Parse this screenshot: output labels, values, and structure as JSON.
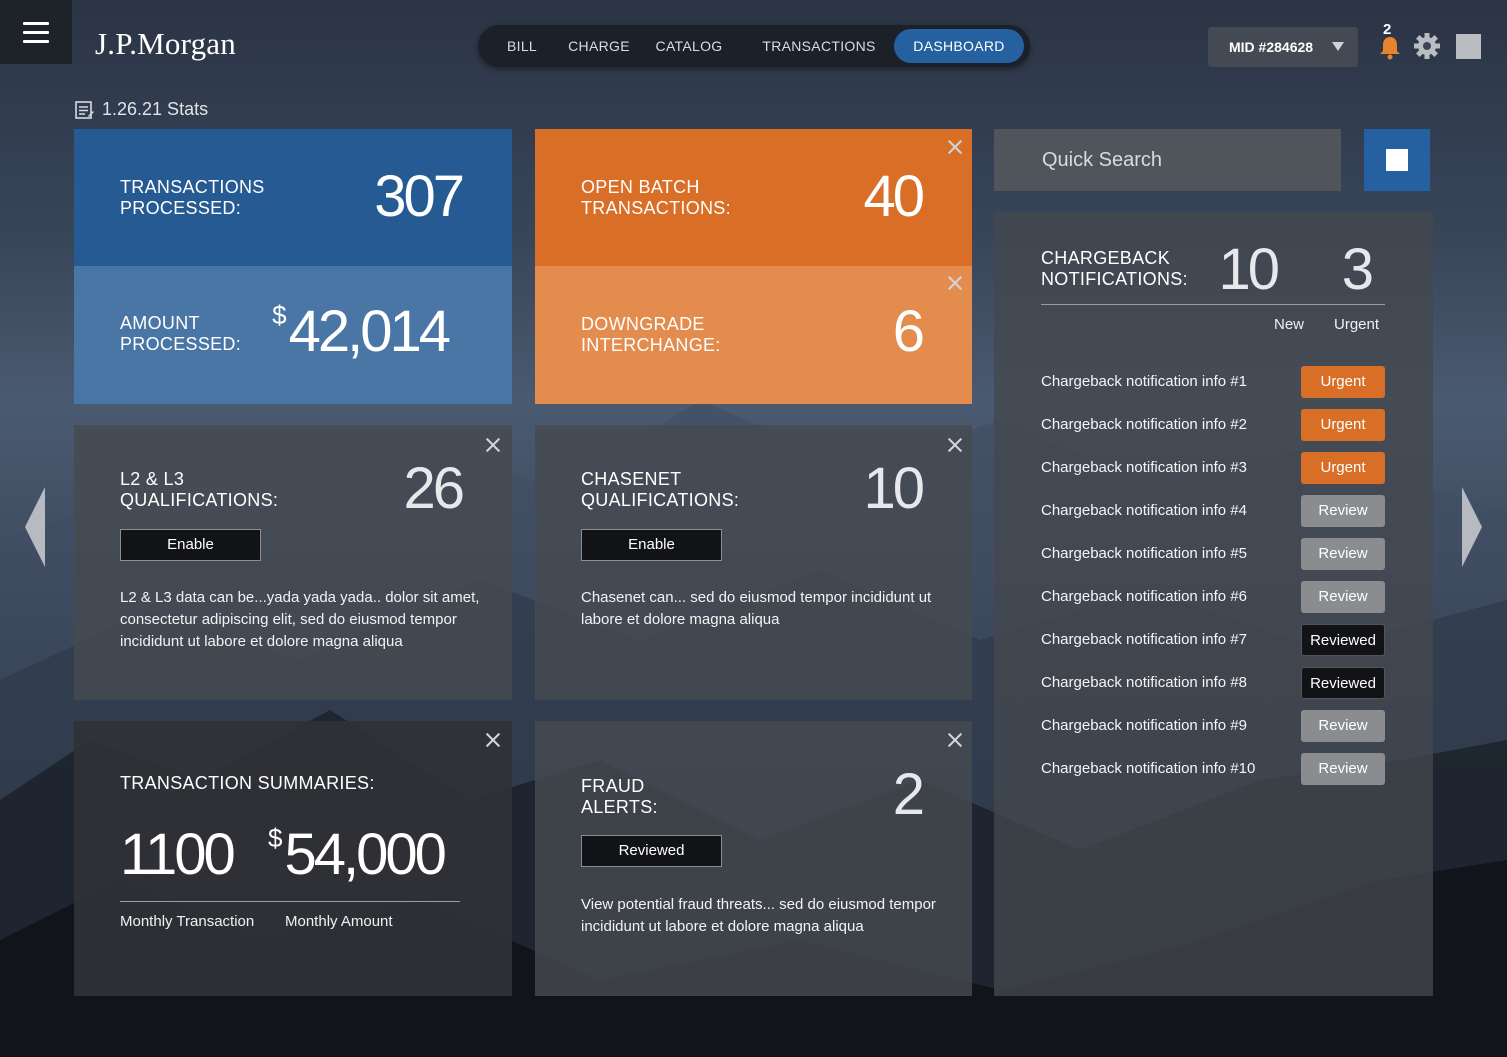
{
  "header": {
    "logo": "J.P.Morgan",
    "nav": [
      {
        "label": "BILL"
      },
      {
        "label": "CHARGE"
      },
      {
        "label": "CATALOG"
      },
      {
        "label": "TRANSACTIONS"
      },
      {
        "label": "DASHBOARD",
        "active": true
      }
    ],
    "merchant": "MID #284628",
    "notification_count": "2"
  },
  "stats_title": "1.26.21 Stats",
  "cards": {
    "transactions_processed": {
      "label_line1": "TRANSACTIONS",
      "label_line2": "PROCESSED:",
      "value": "307"
    },
    "amount_processed": {
      "label_line1": "AMOUNT",
      "label_line2": "PROCESSED:",
      "currency": "$",
      "value": "42,014"
    },
    "open_batch": {
      "label_line1": "OPEN BATCH",
      "label_line2": "TRANSACTIONS:",
      "value": "40"
    },
    "downgrade": {
      "label_line1": "DOWNGRADE",
      "label_line2": "INTERCHANGE:",
      "value": "6"
    },
    "l2l3": {
      "label_line1": "L2 & L3",
      "label_line2": "QUALIFICATIONS:",
      "value": "26",
      "button": "Enable",
      "desc": "L2 & L3 data can be...yada yada yada.. dolor sit amet, consectetur adipiscing elit, sed do eiusmod tempor incididunt ut labore et dolore magna aliqua"
    },
    "chasenet": {
      "label_line1": "CHASENET",
      "label_line2": "QUALIFICATIONS:",
      "value": "10",
      "button": "Enable",
      "desc": "Chasenet can... sed do eiusmod tempor incididunt ut labore et dolore magna aliqua"
    },
    "summaries": {
      "label": "TRANSACTION SUMMARIES:",
      "monthly_transaction": "1100",
      "monthly_transaction_label": "Monthly Transaction",
      "currency": "$",
      "monthly_amount": "54,000",
      "monthly_amount_label": "Monthly Amount"
    },
    "fraud": {
      "label_line1": "FRAUD",
      "label_line2": "ALERTS:",
      "value": "2",
      "button": "Reviewed",
      "desc": "View potential fraud threats... sed do eiusmod tempor incididunt ut labore et dolore magna aliqua"
    }
  },
  "search": {
    "placeholder": "Quick Search"
  },
  "chargeback": {
    "label_line1": "CHARGEBACK",
    "label_line2": "NOTIFICATIONS:",
    "new_count": "10",
    "new_label": "New",
    "urgent_count": "3",
    "urgent_label": "Urgent",
    "items": [
      {
        "text": "Chargeback notification info #1",
        "status": "Urgent",
        "kind": "urgent"
      },
      {
        "text": "Chargeback notification info #2",
        "status": "Urgent",
        "kind": "urgent"
      },
      {
        "text": "Chargeback notification info #3",
        "status": "Urgent",
        "kind": "urgent"
      },
      {
        "text": "Chargeback notification info #4",
        "status": "Review",
        "kind": "review"
      },
      {
        "text": "Chargeback notification info #5",
        "status": "Review",
        "kind": "review"
      },
      {
        "text": "Chargeback notification info #6",
        "status": "Review",
        "kind": "review"
      },
      {
        "text": "Chargeback notification info #7",
        "status": "Reviewed",
        "kind": "reviewed"
      },
      {
        "text": "Chargeback notification info #8",
        "status": "Reviewed",
        "kind": "reviewed"
      },
      {
        "text": "Chargeback notification info #9",
        "status": "Review",
        "kind": "review"
      },
      {
        "text": "Chargeback notification info #10",
        "status": "Review",
        "kind": "review"
      }
    ]
  },
  "colors": {
    "accent_blue": "#2560a0",
    "accent_orange": "#d96e26",
    "review_grey": "#8a8c90"
  }
}
